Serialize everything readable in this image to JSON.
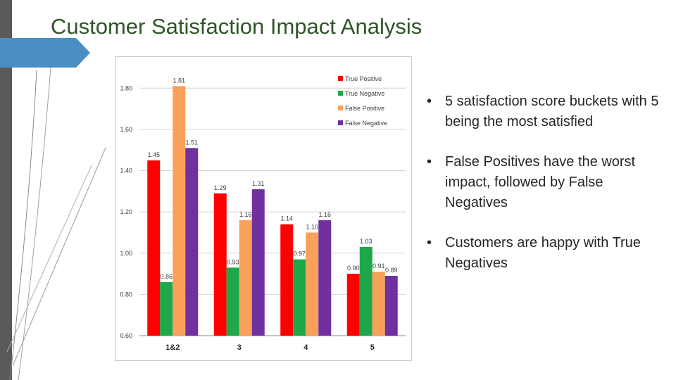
{
  "slide": {
    "title": "Customer Satisfaction Impact Analysis",
    "bullets": [
      "5 satisfaction score buckets with 5 being the most satisfied",
      "False Positives have the worst impact, followed by False Negatives",
      "Customers are happy with True Negatives"
    ],
    "bullet_glyph": "•",
    "accent_color": "#4a8fc4"
  },
  "chart_data": {
    "type": "bar",
    "categories": [
      "1&2",
      "3",
      "4",
      "5"
    ],
    "series": [
      {
        "name": "True Positive",
        "color": "#ff0000",
        "values": [
          1.45,
          1.29,
          1.14,
          0.9
        ]
      },
      {
        "name": "True Negative",
        "color": "#1fa84a",
        "values": [
          0.86,
          0.93,
          0.97,
          1.03
        ]
      },
      {
        "name": "False Positive",
        "color": "#f9a05a",
        "values": [
          1.81,
          1.16,
          1.1,
          0.91
        ]
      },
      {
        "name": "False Negative",
        "color": "#7030a0",
        "values": [
          1.51,
          1.31,
          1.16,
          0.89
        ]
      }
    ],
    "value_labels": [
      [
        "1.45",
        "1.29",
        "1.14",
        "0.90"
      ],
      [
        "0.86",
        "0.93",
        "0.97",
        "1.03"
      ],
      [
        "1.81",
        "1.16",
        "1.10",
        "0.91"
      ],
      [
        "1.51",
        "1.31",
        "1.16",
        "0.89"
      ]
    ],
    "y_ticks": [
      "0.60",
      "0.80",
      "1.00",
      "1.20",
      "1.40",
      "1.60",
      "1.80"
    ],
    "ylim": [
      0.6,
      1.9
    ],
    "grid": true,
    "legend_position": "top-right",
    "title": "",
    "xlabel": "",
    "ylabel": ""
  }
}
